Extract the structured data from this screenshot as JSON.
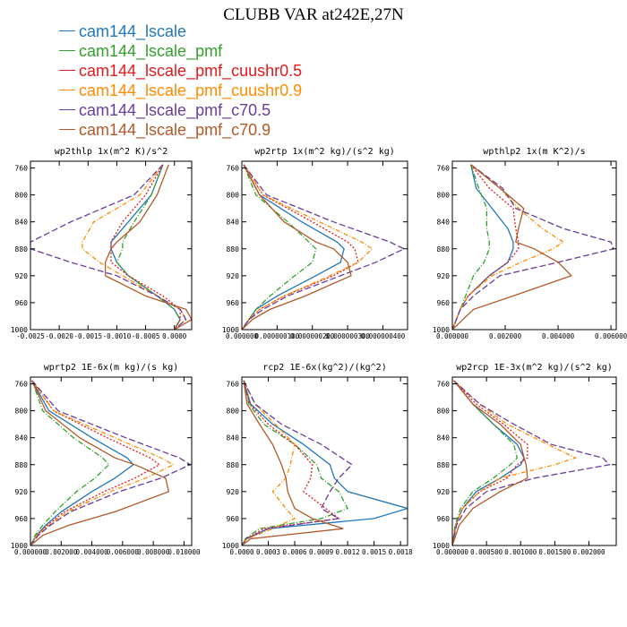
{
  "title": "CLUBB VAR at242E,27N",
  "legend": [
    {
      "label": "cam144_lscale",
      "color": "#2277bb",
      "dash": ""
    },
    {
      "label": "cam144_lscale_pmf",
      "color": "#33a02c",
      "dash": "6,2,1,2"
    },
    {
      "label": "cam144_lscale_pmf_cuushr0.5",
      "color": "#e31a1c",
      "dash": "2,2"
    },
    {
      "label": "cam144_lscale_pmf_cuushr0.9",
      "color": "#ff8c00",
      "dash": "5,2,1,2"
    },
    {
      "label": "cam144_lscale_pmf_c70.5",
      "color": "#6a3d9a",
      "dash": "7,3"
    },
    {
      "label": "cam144_lscale_pmf_c70.9",
      "color": "#b15928",
      "dash": ""
    }
  ],
  "chart_data": [
    {
      "type": "line",
      "title": "wp2thlp  1x(m^2 K)/s^2",
      "xlim": [
        -0.0025,
        0.0003
      ],
      "ylim": [
        1000,
        750
      ],
      "xticks": [
        "-0.0025",
        "-0.0020",
        "-0.0015",
        "-0.0010",
        "-0.0005",
        "0.0000"
      ],
      "xtick_values": [
        -0.0025,
        -0.002,
        -0.0015,
        -0.001,
        -0.0005,
        0.0
      ],
      "yticks": [
        "760",
        "800",
        "840",
        "880",
        "920",
        "960",
        "1000"
      ],
      "ytick_values": [
        760,
        800,
        840,
        880,
        920,
        960,
        1000
      ],
      "y": [
        755,
        800,
        840,
        870,
        880,
        900,
        920,
        950,
        970,
        985,
        1000
      ],
      "series": [
        {
          "values": [
            -0.0002,
            -0.0004,
            -0.0008,
            -0.0011,
            -0.0011,
            -0.001,
            -0.0008,
            -0.0003,
            0.0,
            0.0001,
            0.0
          ]
        },
        {
          "values": [
            -0.0002,
            -0.0004,
            -0.0007,
            -0.0009,
            -0.0009,
            -0.001,
            -0.0008,
            -0.0003,
            0.0,
            0.0001,
            0.0
          ]
        },
        {
          "values": [
            -0.0002,
            -0.0005,
            -0.0009,
            -0.0011,
            -0.0011,
            -0.0011,
            -0.0008,
            -0.0002,
            0.0001,
            0.0001,
            0.0
          ]
        },
        {
          "values": [
            -0.0002,
            -0.0006,
            -0.0014,
            -0.0016,
            -0.0016,
            -0.0013,
            -0.0009,
            -0.0003,
            0.0001,
            0.0002,
            0.0
          ]
        },
        {
          "values": [
            -0.0002,
            -0.0007,
            -0.0018,
            -0.0025,
            -0.0025,
            -0.0018,
            -0.001,
            -0.0003,
            0.0001,
            0.0002,
            0.0
          ]
        },
        {
          "values": [
            -0.0001,
            -0.0003,
            -0.0006,
            -0.001,
            -0.0011,
            -0.0012,
            -0.0012,
            -0.0005,
            0.0002,
            0.0003,
            0.0
          ]
        }
      ]
    },
    {
      "type": "line",
      "title": "wp2rtp  1x(m^2 kg)/(s^2 kg)",
      "xlim": [
        0,
        4.7e-07
      ],
      "ylim": [
        1000,
        750
      ],
      "xticks": [
        "0.000000",
        "0.000000100",
        "0.000000200",
        "0.000000300",
        "0.000000400"
      ],
      "xtick_values": [
        0,
        1e-07,
        2e-07,
        3e-07,
        4e-07
      ],
      "yticks": [
        "760",
        "800",
        "840",
        "880",
        "920",
        "960",
        "1000"
      ],
      "ytick_values": [
        760,
        800,
        840,
        880,
        920,
        960,
        1000
      ],
      "y": [
        755,
        800,
        840,
        870,
        880,
        900,
        920,
        950,
        970,
        985,
        1000
      ],
      "series": [
        {
          "values": [
            5e-09,
            5e-08,
            1.7e-07,
            2.7e-07,
            2.9e-07,
            2.8e-07,
            2.1e-07,
            1e-07,
            4e-08,
            2e-08,
            0.0
          ]
        },
        {
          "values": [
            5e-09,
            4e-08,
            1.3e-07,
            1.9e-07,
            2.1e-07,
            2e-07,
            1.5e-07,
            8e-08,
            4e-08,
            2e-08,
            0.0
          ]
        },
        {
          "values": [
            5e-09,
            6e-08,
            2e-07,
            3e-07,
            3.2e-07,
            3.3e-07,
            2.6e-07,
            1.2e-07,
            5e-08,
            2e-08,
            0.0
          ]
        },
        {
          "values": [
            5e-09,
            6e-08,
            2.2e-07,
            3.4e-07,
            3.7e-07,
            3.3e-07,
            2.5e-07,
            1.2e-07,
            5e-08,
            2e-08,
            0.0
          ]
        },
        {
          "values": [
            5e-09,
            7e-08,
            2.6e-07,
            4.2e-07,
            4.6e-07,
            3.8e-07,
            2.8e-07,
            1.3e-07,
            6e-08,
            2e-08,
            0.0
          ]
        },
        {
          "values": [
            5e-09,
            5e-08,
            1.2e-07,
            2.1e-07,
            2.6e-07,
            3e-07,
            3.1e-07,
            1.8e-07,
            8e-08,
            3e-08,
            0.0
          ]
        }
      ]
    },
    {
      "type": "line",
      "title": "wpthlp2  1x(m K^2)/s",
      "xlim": [
        0,
        0.0062
      ],
      "ylim": [
        1000,
        750
      ],
      "xticks": [
        "0.000000",
        "0.002000",
        "0.004000",
        "0.006000"
      ],
      "xtick_values": [
        0,
        0.002,
        0.004,
        0.006
      ],
      "yticks": [
        "760",
        "800",
        "840",
        "880",
        "920",
        "960",
        "1000"
      ],
      "ytick_values": [
        760,
        800,
        840,
        880,
        920,
        960,
        1000
      ],
      "y": [
        755,
        790,
        820,
        850,
        870,
        880,
        900,
        920,
        950,
        970,
        1000
      ],
      "series": [
        {
          "values": [
            0.0007,
            0.0009,
            0.0015,
            0.0021,
            0.0023,
            0.0023,
            0.0021,
            0.0014,
            0.0006,
            0.0003,
            0.0
          ]
        },
        {
          "values": [
            0.0007,
            0.001,
            0.0013,
            0.0013,
            0.0014,
            0.0014,
            0.0012,
            0.0008,
            0.0005,
            0.0003,
            0.0
          ]
        },
        {
          "values": [
            0.0007,
            0.0014,
            0.0023,
            0.0024,
            0.0025,
            0.0025,
            0.0021,
            0.0014,
            0.0006,
            0.0003,
            0.0
          ]
        },
        {
          "values": [
            0.0007,
            0.0018,
            0.0025,
            0.0034,
            0.0042,
            0.0038,
            0.0026,
            0.0015,
            0.0006,
            0.0003,
            0.0
          ]
        },
        {
          "values": [
            0.0007,
            0.0019,
            0.0024,
            0.0042,
            0.006,
            0.0061,
            0.004,
            0.0018,
            0.0008,
            0.0003,
            0.0
          ]
        },
        {
          "values": [
            0.0007,
            0.0018,
            0.0027,
            0.0025,
            0.0024,
            0.0031,
            0.004,
            0.0045,
            0.0023,
            0.0008,
            0.0
          ]
        }
      ]
    },
    {
      "type": "line",
      "title": "wprtp2  1E-6x(m kg)/(s kg)",
      "xlim": [
        0,
        0.0105
      ],
      "ylim": [
        1000,
        750
      ],
      "xticks": [
        "0.000000",
        "0.002000",
        "0.004000",
        "0.006000",
        "0.008000",
        "0.010000"
      ],
      "xtick_values": [
        0,
        0.002,
        0.004,
        0.006,
        0.008,
        0.01
      ],
      "yticks": [
        "760",
        "800",
        "840",
        "880",
        "920",
        "960",
        "1000"
      ],
      "ytick_values": [
        760,
        800,
        840,
        880,
        920,
        960,
        1000
      ],
      "y": [
        755,
        800,
        840,
        870,
        880,
        900,
        920,
        950,
        970,
        985,
        1000
      ],
      "series": [
        {
          "values": [
            0.0001,
            0.0012,
            0.004,
            0.0063,
            0.0067,
            0.0055,
            0.004,
            0.002,
            0.001,
            0.0004,
            0.0
          ]
        },
        {
          "values": [
            0.0001,
            0.0008,
            0.0028,
            0.0047,
            0.0051,
            0.0042,
            0.003,
            0.0016,
            0.0008,
            0.0003,
            0.0
          ]
        },
        {
          "values": [
            0.0001,
            0.0015,
            0.005,
            0.0078,
            0.0084,
            0.0068,
            0.0048,
            0.0022,
            0.0011,
            0.0004,
            0.0
          ]
        },
        {
          "values": [
            0.0001,
            0.0015,
            0.0055,
            0.0085,
            0.0093,
            0.0075,
            0.0052,
            0.0024,
            0.0012,
            0.0004,
            0.0
          ]
        },
        {
          "values": [
            0.0001,
            0.0018,
            0.0062,
            0.0097,
            0.0104,
            0.0085,
            0.0058,
            0.0026,
            0.0013,
            0.0005,
            0.0
          ]
        },
        {
          "values": [
            0.0001,
            0.001,
            0.0032,
            0.0055,
            0.0068,
            0.0088,
            0.009,
            0.0055,
            0.0025,
            0.0008,
            0.0
          ]
        }
      ]
    },
    {
      "type": "line",
      "title": "rcp2  1E-6x(kg^2)/(kg^2)",
      "xlim": [
        0,
        0.00188
      ],
      "ylim": [
        1000,
        750
      ],
      "xticks": [
        "0.0000",
        "0.0003",
        "0.0006",
        "0.0009",
        "0.0012",
        "0.0015",
        "0.0018"
      ],
      "xtick_values": [
        0,
        0.0003,
        0.0006,
        0.0009,
        0.0012,
        0.0015,
        0.0018
      ],
      "yticks": [
        "760",
        "800",
        "840",
        "880",
        "920",
        "960",
        "1000"
      ],
      "ytick_values": [
        760,
        800,
        840,
        880,
        920,
        960,
        1000
      ],
      "y": [
        755,
        790,
        820,
        850,
        880,
        900,
        920,
        945,
        960,
        975,
        990,
        1000
      ],
      "series": [
        {
          "values": [
            2e-05,
            0.0001,
            0.00035,
            0.0007,
            0.001,
            0.00105,
            0.0012,
            0.00188,
            0.0015,
            0.0003,
            5e-05,
            0.0
          ]
        },
        {
          "values": [
            2e-05,
            8e-05,
            0.00025,
            0.0006,
            0.00085,
            0.0009,
            0.0011,
            0.0012,
            0.0009,
            0.0002,
            4e-05,
            0.0
          ]
        },
        {
          "values": [
            2e-05,
            9e-05,
            0.0003,
            0.0006,
            0.0008,
            0.00078,
            0.0007,
            0.00095,
            0.0011,
            0.00025,
            5e-05,
            0.0
          ]
        },
        {
          "values": [
            2e-05,
            0.00015,
            0.00038,
            0.0006,
            0.00055,
            0.0005,
            0.00035,
            0.0005,
            0.0006,
            0.00035,
            6e-05,
            0.0
          ]
        },
        {
          "values": [
            2e-05,
            0.00015,
            0.00045,
            0.0009,
            0.00125,
            0.0011,
            0.001,
            0.0009,
            0.0011,
            0.0003,
            5e-05,
            0.0
          ]
        },
        {
          "values": [
            2e-05,
            6e-05,
            0.0002,
            0.00035,
            0.00045,
            0.0005,
            0.00052,
            0.0006,
            0.0008,
            0.00115,
            0.0001,
            0.0
          ]
        }
      ]
    },
    {
      "type": "line",
      "title": "wp2rcp  1E-3x(m^2 kg)/(s^2 kg)",
      "xlim": [
        0,
        0.0024
      ],
      "ylim": [
        1000,
        750
      ],
      "xticks": [
        "0.000000",
        "0.000500",
        "0.001000",
        "0.001500",
        "0.002000"
      ],
      "xtick_values": [
        0,
        0.0005,
        0.001,
        0.0015,
        0.002
      ],
      "yticks": [
        "760",
        "800",
        "840",
        "880",
        "920",
        "960",
        "1000"
      ],
      "ytick_values": [
        760,
        800,
        840,
        880,
        920,
        960,
        1000
      ],
      "y": [
        755,
        790,
        820,
        850,
        870,
        880,
        900,
        920,
        945,
        970,
        1000
      ],
      "series": [
        {
          "values": [
            2e-05,
            0.0003,
            0.0006,
            0.00095,
            0.00105,
            0.001,
            0.0007,
            0.00035,
            0.00015,
            5e-05,
            0.0
          ]
        },
        {
          "values": [
            2e-05,
            0.0003,
            0.0006,
            0.0009,
            0.00095,
            0.00085,
            0.0006,
            0.0003,
            0.00012,
            4e-05,
            0.0
          ]
        },
        {
          "values": [
            2e-05,
            0.00035,
            0.00075,
            0.0011,
            0.0011,
            0.00095,
            0.0008,
            0.0004,
            0.00015,
            5e-05,
            0.0
          ]
        },
        {
          "values": [
            2e-05,
            0.0004,
            0.0008,
            0.0014,
            0.0018,
            0.0015,
            0.0007,
            0.0004,
            0.00015,
            5e-05,
            0.0
          ]
        },
        {
          "values": [
            2e-05,
            0.0004,
            0.0009,
            0.00145,
            0.0022,
            0.0023,
            0.0012,
            0.0005,
            0.0002,
            6e-05,
            0.0
          ]
        },
        {
          "values": [
            2e-05,
            0.0003,
            0.0007,
            0.001,
            0.00105,
            0.00108,
            0.0011,
            0.0007,
            0.0003,
            0.0001,
            0.0
          ]
        }
      ]
    }
  ]
}
